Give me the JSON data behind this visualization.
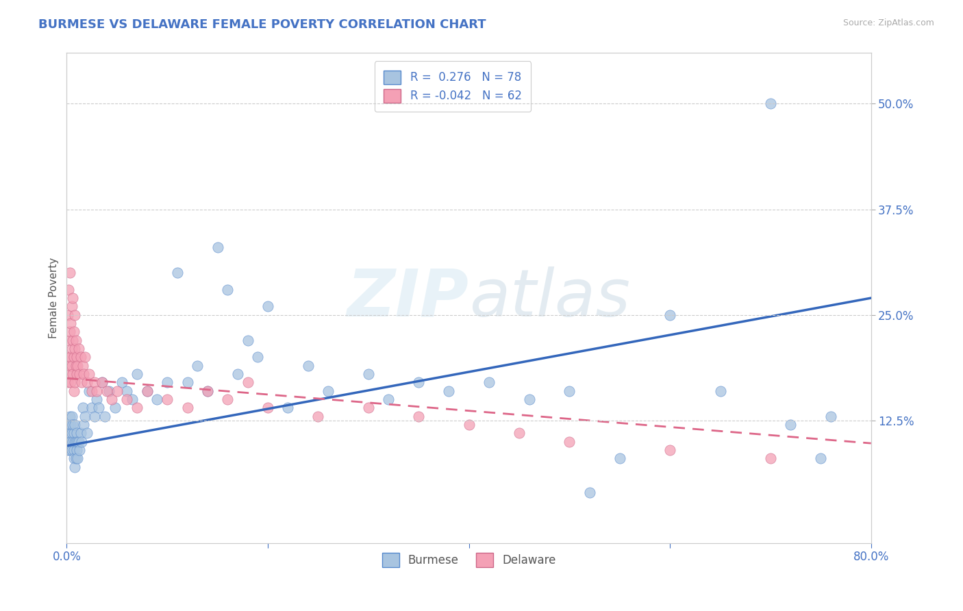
{
  "title": "BURMESE VS DELAWARE FEMALE POVERTY CORRELATION CHART",
  "source": "Source: ZipAtlas.com",
  "ylabel": "Female Poverty",
  "watermark": "ZIPatlas",
  "xlim": [
    0.0,
    0.8
  ],
  "ylim": [
    -0.02,
    0.56
  ],
  "xticks": [
    0.0,
    0.2,
    0.4,
    0.6,
    0.8
  ],
  "xtick_labels": [
    "0.0%",
    "",
    "",
    "",
    "80.0%"
  ],
  "yticks": [
    0.125,
    0.25,
    0.375,
    0.5
  ],
  "ytick_labels": [
    "12.5%",
    "25.0%",
    "37.5%",
    "50.0%"
  ],
  "burmese_color": "#a8c4e0",
  "delaware_color": "#f4a0b5",
  "burmese_edge_color": "#5588cc",
  "delaware_edge_color": "#cc6688",
  "burmese_line_color": "#3366bb",
  "delaware_line_color": "#dd6688",
  "burmese_R": 0.276,
  "burmese_N": 78,
  "delaware_R": -0.042,
  "delaware_N": 62,
  "title_fontsize": 13,
  "background_color": "#ffffff",
  "grid_color": "#cccccc",
  "burmese_x": [
    0.001,
    0.001,
    0.002,
    0.002,
    0.003,
    0.003,
    0.003,
    0.004,
    0.004,
    0.005,
    0.005,
    0.005,
    0.006,
    0.006,
    0.007,
    0.007,
    0.007,
    0.008,
    0.008,
    0.008,
    0.009,
    0.009,
    0.01,
    0.01,
    0.011,
    0.011,
    0.012,
    0.013,
    0.014,
    0.015,
    0.016,
    0.017,
    0.018,
    0.02,
    0.022,
    0.025,
    0.028,
    0.03,
    0.032,
    0.035,
    0.038,
    0.042,
    0.048,
    0.055,
    0.06,
    0.065,
    0.07,
    0.08,
    0.09,
    0.1,
    0.11,
    0.12,
    0.13,
    0.14,
    0.15,
    0.16,
    0.17,
    0.18,
    0.19,
    0.2,
    0.22,
    0.24,
    0.26,
    0.3,
    0.32,
    0.35,
    0.38,
    0.42,
    0.46,
    0.5,
    0.52,
    0.55,
    0.6,
    0.65,
    0.7,
    0.72,
    0.75,
    0.76
  ],
  "burmese_y": [
    0.09,
    0.11,
    0.1,
    0.12,
    0.09,
    0.11,
    0.13,
    0.1,
    0.12,
    0.09,
    0.11,
    0.13,
    0.1,
    0.12,
    0.09,
    0.11,
    0.08,
    0.1,
    0.12,
    0.07,
    0.1,
    0.08,
    0.09,
    0.11,
    0.1,
    0.08,
    0.1,
    0.09,
    0.11,
    0.1,
    0.14,
    0.12,
    0.13,
    0.11,
    0.16,
    0.14,
    0.13,
    0.15,
    0.14,
    0.17,
    0.13,
    0.16,
    0.14,
    0.17,
    0.16,
    0.15,
    0.18,
    0.16,
    0.15,
    0.17,
    0.3,
    0.17,
    0.19,
    0.16,
    0.33,
    0.28,
    0.18,
    0.22,
    0.2,
    0.26,
    0.14,
    0.19,
    0.16,
    0.18,
    0.15,
    0.17,
    0.16,
    0.17,
    0.15,
    0.16,
    0.04,
    0.08,
    0.25,
    0.16,
    0.5,
    0.12,
    0.08,
    0.13
  ],
  "delaware_x": [
    0.001,
    0.001,
    0.001,
    0.002,
    0.002,
    0.002,
    0.003,
    0.003,
    0.003,
    0.004,
    0.004,
    0.004,
    0.005,
    0.005,
    0.005,
    0.006,
    0.006,
    0.006,
    0.007,
    0.007,
    0.007,
    0.008,
    0.008,
    0.008,
    0.009,
    0.009,
    0.01,
    0.01,
    0.011,
    0.012,
    0.013,
    0.014,
    0.015,
    0.016,
    0.017,
    0.018,
    0.02,
    0.022,
    0.025,
    0.028,
    0.03,
    0.035,
    0.04,
    0.045,
    0.05,
    0.06,
    0.07,
    0.08,
    0.1,
    0.12,
    0.14,
    0.16,
    0.18,
    0.2,
    0.25,
    0.3,
    0.35,
    0.4,
    0.45,
    0.5,
    0.6,
    0.7
  ],
  "delaware_y": [
    0.17,
    0.2,
    0.25,
    0.18,
    0.22,
    0.28,
    0.19,
    0.23,
    0.3,
    0.2,
    0.24,
    0.17,
    0.21,
    0.26,
    0.19,
    0.22,
    0.27,
    0.18,
    0.2,
    0.23,
    0.16,
    0.21,
    0.25,
    0.17,
    0.19,
    0.22,
    0.18,
    0.2,
    0.19,
    0.21,
    0.18,
    0.2,
    0.17,
    0.19,
    0.18,
    0.2,
    0.17,
    0.18,
    0.16,
    0.17,
    0.16,
    0.17,
    0.16,
    0.15,
    0.16,
    0.15,
    0.14,
    0.16,
    0.15,
    0.14,
    0.16,
    0.15,
    0.17,
    0.14,
    0.13,
    0.14,
    0.13,
    0.12,
    0.11,
    0.1,
    0.09,
    0.08
  ]
}
